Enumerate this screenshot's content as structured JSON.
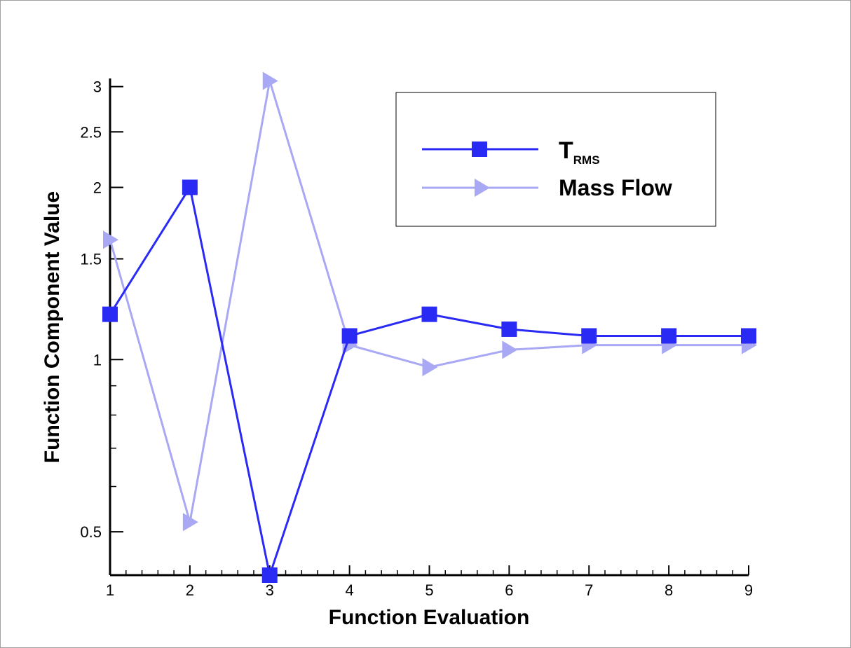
{
  "chart_data": {
    "type": "line",
    "title": "",
    "xlabel": "Function Evaluation",
    "ylabel": "Function Component Value",
    "x": [
      1,
      2,
      3,
      4,
      5,
      6,
      7,
      8,
      9
    ],
    "xlim": [
      1,
      9
    ],
    "ylim": [
      0.42,
      3.1
    ],
    "yscale": "log",
    "x_ticks": [
      "1",
      "2",
      "3",
      "4",
      "5",
      "6",
      "7",
      "8",
      "9"
    ],
    "y_ticks": [
      {
        "value": 0.5,
        "label": "0.5"
      },
      {
        "value": 1,
        "label": "1"
      },
      {
        "value": 1.5,
        "label": "1.5"
      },
      {
        "value": 2,
        "label": "2"
      },
      {
        "value": 2.5,
        "label": "2.5"
      },
      {
        "value": 3,
        "label": "3"
      }
    ],
    "grid": false,
    "legend_position": "top-right",
    "series": [
      {
        "name": "T",
        "name_subscript": "RMS",
        "color": "#2a2af5",
        "marker": "square",
        "values": [
          1.2,
          2.0,
          0.42,
          1.1,
          1.2,
          1.13,
          1.1,
          1.1,
          1.1
        ]
      },
      {
        "name": "Mass Flow",
        "color": "#a8a8f4",
        "marker": "triangle-right",
        "values": [
          1.62,
          0.52,
          3.07,
          1.06,
          0.97,
          1.04,
          1.06,
          1.06,
          1.06
        ]
      }
    ]
  }
}
